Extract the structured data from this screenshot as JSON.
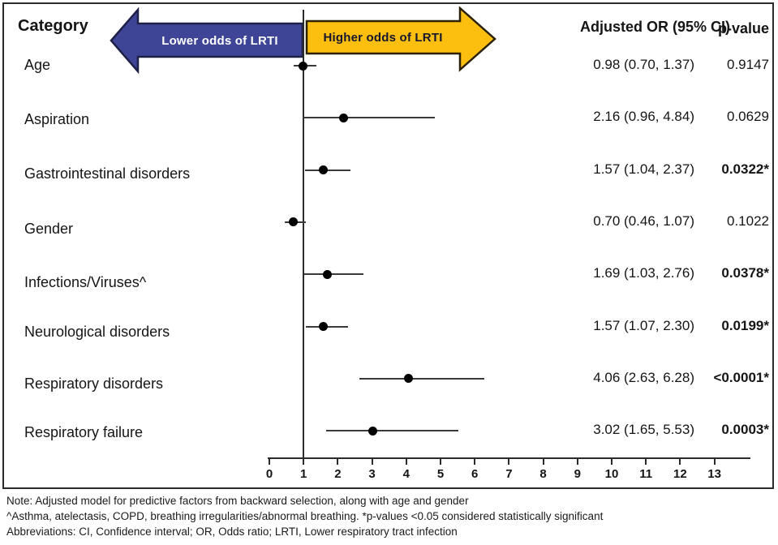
{
  "chart_data": {
    "type": "scatter",
    "subtype": "forest-plot",
    "headers": {
      "category": "Category",
      "or": "Adjusted OR (95% CI)",
      "p": "p-value"
    },
    "rows": [
      {
        "category": "Age",
        "or": 0.98,
        "ci_low": 0.7,
        "ci_high": 1.37,
        "or_text": "0.98 (0.70, 1.37)",
        "p_text": "0.9147",
        "significant": false
      },
      {
        "category": "Aspiration",
        "or": 2.16,
        "ci_low": 0.96,
        "ci_high": 4.84,
        "or_text": "2.16 (0.96, 4.84)",
        "p_text": "0.0629",
        "significant": false
      },
      {
        "category": "Gastrointestinal disorders",
        "or": 1.57,
        "ci_low": 1.04,
        "ci_high": 2.37,
        "or_text": "1.57 (1.04, 2.37)",
        "p_text": "0.0322*",
        "significant": true
      },
      {
        "category": "Gender",
        "or": 0.7,
        "ci_low": 0.46,
        "ci_high": 1.07,
        "or_text": "0.70 (0.46, 1.07)",
        "p_text": "0.1022",
        "significant": false
      },
      {
        "category": "Infections/Viruses^",
        "or": 1.69,
        "ci_low": 1.03,
        "ci_high": 2.76,
        "or_text": "1.69 (1.03, 2.76)",
        "p_text": "0.0378*",
        "significant": true
      },
      {
        "category": "Neurological disorders",
        "or": 1.57,
        "ci_low": 1.07,
        "ci_high": 2.3,
        "or_text": "1.57 (1.07, 2.30)",
        "p_text": "0.0199*",
        "significant": true
      },
      {
        "category": "Respiratory disorders",
        "or": 4.06,
        "ci_low": 2.63,
        "ci_high": 6.28,
        "or_text": "4.06 (2.63, 6.28)",
        "p_text": "<0.0001*",
        "significant": true
      },
      {
        "category": "Respiratory failure",
        "or": 3.02,
        "ci_low": 1.65,
        "ci_high": 5.53,
        "or_text": "3.02 (1.65, 5.53)",
        "p_text": "0.0003*",
        "significant": true
      }
    ],
    "x_axis": {
      "min": 0,
      "max": 13,
      "ticks": [
        0,
        1,
        2,
        3,
        4,
        5,
        6,
        7,
        8,
        9,
        10,
        11,
        12,
        13
      ],
      "ref_line": 1,
      "grid": false
    },
    "annotations": {
      "left_arrow": "Lower odds of LRTI",
      "right_arrow": "Higher odds of LRTI"
    },
    "marker_color": "#000000"
  },
  "colors": {
    "arrow_left_fill": "#3e4597",
    "arrow_left_stroke": "#1e2147",
    "arrow_left_text": "#ffffff",
    "arrow_right_fill": "#fcbf10",
    "arrow_right_stroke": "#2a2108",
    "arrow_right_text": "#16162e",
    "frame_border": "#2b2b2b"
  },
  "notes": {
    "line1": "Note: Adjusted model for predictive factors from backward selection, along with age and gender",
    "line2": "^Asthma, atelectasis, COPD, breathing irregularities/abnormal breathing. *p-values <0.05 considered statistically significant",
    "line3": "Abbreviations: CI, Confidence interval; OR, Odds ratio; LRTI, Lower respiratory tract infection"
  }
}
